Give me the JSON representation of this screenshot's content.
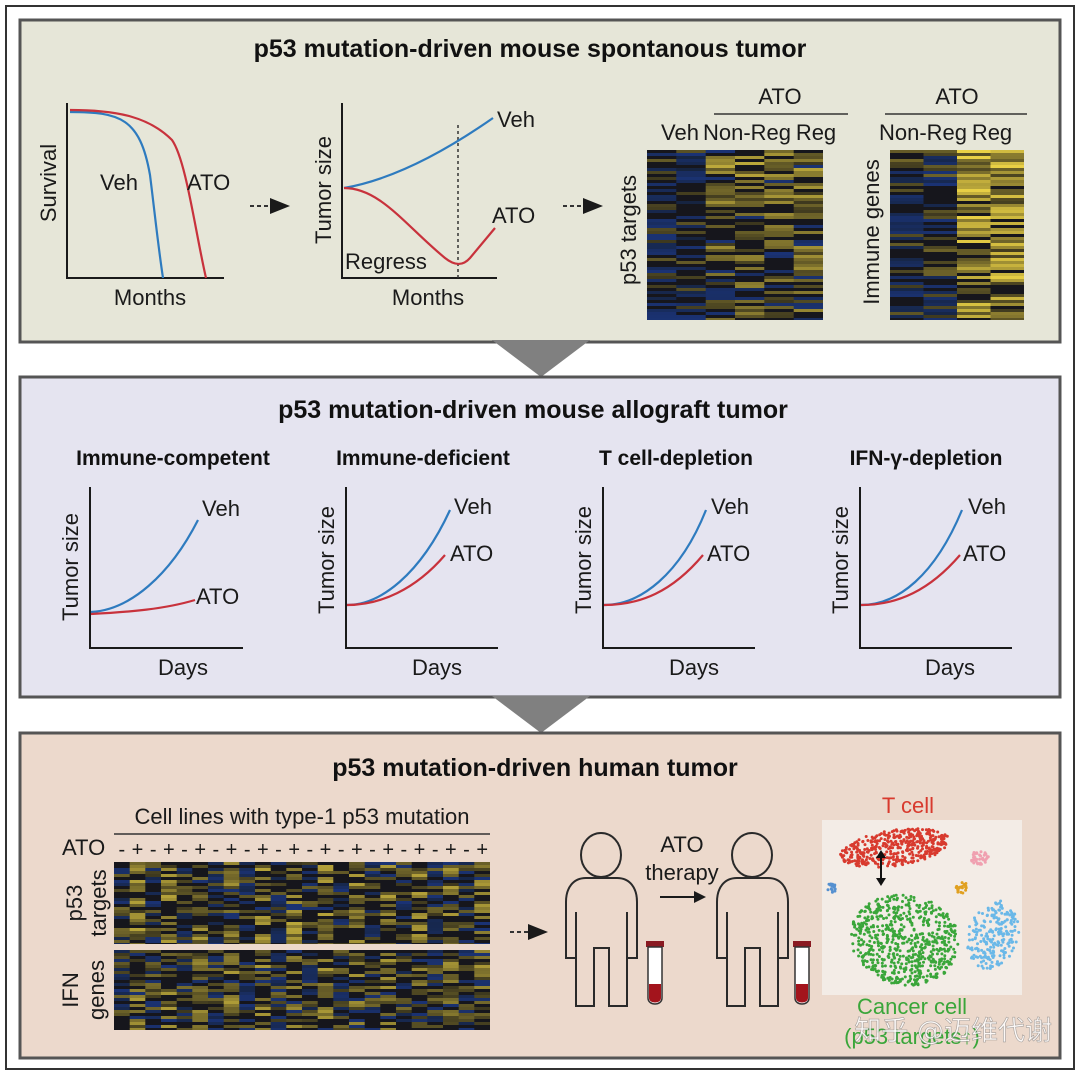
{
  "colors": {
    "veh_line": "#2e7bbf",
    "ato_line": "#c8323c",
    "panel1_bg": "#e6e6d8",
    "panel2_bg": "#e5e4f0",
    "panel3_bg": "#ecd9cc",
    "tcell": "#d83a2e",
    "cancer": "#3aa63a",
    "heat_high": "#e8d050",
    "heat_low": "#1a2a55"
  },
  "panel1": {
    "title": "p53 mutation-driven mouse spontanous tumor",
    "survival": {
      "ylabel": "Survival",
      "xlabel": "Months",
      "veh": "Veh",
      "ato": "ATO"
    },
    "tumor": {
      "ylabel": "Tumor size",
      "xlabel": "Months",
      "veh": "Veh",
      "ato": "ATO",
      "regress": "Regress"
    },
    "heatmap1": {
      "group": "ATO",
      "col_veh": "Veh",
      "col_nonreg": "Non-Reg",
      "col_reg": "Reg",
      "row_label": "p53 targets"
    },
    "heatmap2": {
      "group": "ATO",
      "col_nonreg": "Non-Reg",
      "col_reg": "Reg",
      "row_label": "Immune genes"
    }
  },
  "panel2": {
    "title": "p53 mutation-driven mouse allograft tumor",
    "plots": [
      {
        "title": "Immune-competent",
        "ylabel": "Tumor size",
        "xlabel": "Days",
        "veh": "Veh",
        "ato": "ATO"
      },
      {
        "title": "Immune-deficient",
        "ylabel": "Tumor size",
        "xlabel": "Days",
        "veh": "Veh",
        "ato": "ATO"
      },
      {
        "title": "T cell-depletion",
        "ylabel": "Tumor size",
        "xlabel": "Days",
        "veh": "Veh",
        "ato": "ATO"
      },
      {
        "title": "IFN-γ-depletion",
        "ylabel": "Tumor size",
        "xlabel": "Days",
        "veh": "Veh",
        "ato": "ATO"
      }
    ]
  },
  "panel3": {
    "title": "p53 mutation-driven human tumor",
    "cell_lines": "Cell lines with type-1 p53 mutation",
    "ato_row_label": "ATO",
    "signs": [
      "-",
      "+",
      "-",
      "+",
      "-",
      "+",
      "-",
      "+",
      "-",
      "+",
      "-",
      "+",
      "-",
      "+",
      "-",
      "+",
      "-",
      "+",
      "-",
      "+",
      "-",
      "+",
      "-",
      "+"
    ],
    "p53_label_1": "p53",
    "p53_label_2": "targets",
    "ifn_label_1": "IFN",
    "ifn_label_2": "genes",
    "therapy_1": "ATO",
    "therapy_2": "therapy",
    "tcell_label": "T cell",
    "cancer_label": "Cancer cell",
    "cancer_sub_label": "(p53 targets↑)"
  },
  "watermark": "知乎 @迈维代谢"
}
